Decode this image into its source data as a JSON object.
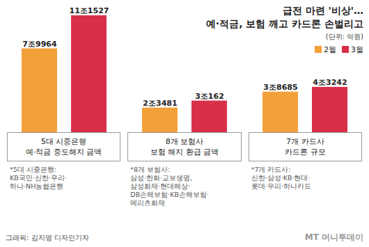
{
  "chart_data": {
    "type": "bar",
    "title": "급전 마련 '비상'…",
    "subtitle": "예·적금, 보험 깨고 카드론 손벌리고",
    "unit": "(단위: 억원)",
    "categories": [
      "5대 시중은행\n예·적금 중도해지 금액",
      "8개 보험사\n보험 해지 환급 금액",
      "7개 카드사\n카드론 규모"
    ],
    "series": [
      {
        "name": "2월",
        "color": "#f4a03a",
        "values": [
          79964,
          23481,
          38685
        ],
        "value_labels": [
          "7조9964",
          "2조3481",
          "3조8685"
        ]
      },
      {
        "name": "3월",
        "color": "#d9304a",
        "values": [
          111527,
          30162,
          43242
        ],
        "value_labels": [
          "11조1527",
          "3조162",
          "4조3242"
        ]
      }
    ],
    "notes": [
      "*5대 시중은행:\nKB국민·신한·우리·\n하나·NH농협은행",
      "*8개 보험사:\n삼성·한화·교보생명,\n삼성화재·현대해상·\nDB손해보험·KB손해보험·\n메리츠화재",
      "*7개 카드사:\n신한·삼성·KB·현대·\n롯데·우리·하나카드"
    ],
    "credit": "그래픽: 김지영 디자인기자",
    "logo": "MT 머니투데이",
    "data_labels": true,
    "tick_labels": false,
    "legend": "top-right"
  }
}
